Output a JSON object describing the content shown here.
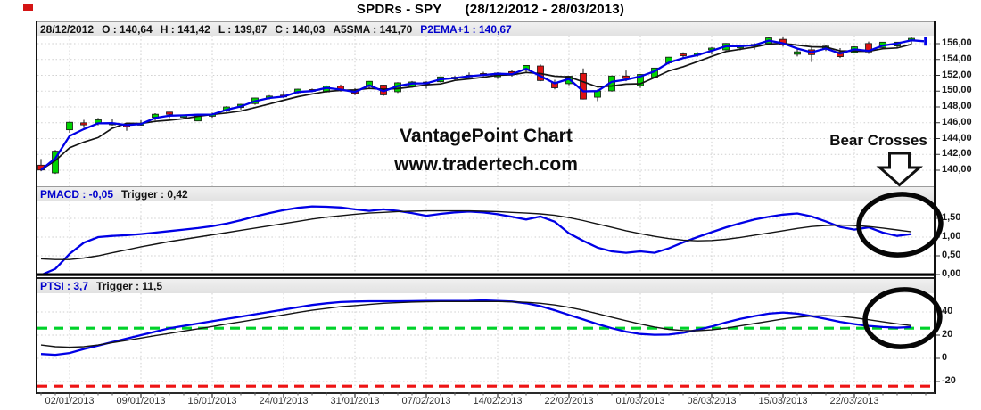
{
  "window_title": {
    "symbol": "SPDRs - SPY",
    "date_range": "(28/12/2012 - 28/03/2013)"
  },
  "price_panel": {
    "info_bar": {
      "date": "28/12/2012",
      "open": "O : 140,64",
      "high": "H : 141,42",
      "low": "L : 139,87",
      "close": "C : 140,03",
      "a5sma": "A5SMA : 141,70",
      "p2ema": "P2EMA+1 : 140,67"
    }
  },
  "pmacd_panel": {
    "name_value": "PMACD : -0,05",
    "trigger_value": "Trigger : 0,42"
  },
  "ptsi_panel": {
    "name_value": "PTSI : 3,7",
    "trigger_value": "Trigger : 11,5"
  },
  "annotations": {
    "watermark_line1": "VantagePoint Chart",
    "watermark_line2": "www.tradertech.com",
    "bear_crosses": "Bear Crosses"
  },
  "colors": {
    "candle_up": "#00d400",
    "candle_down": "#e01212",
    "predicted_line": "#0000e6",
    "average_line": "#141414",
    "blue_text": "#0000cc",
    "overbought_dash": "#00d22a",
    "oversold_dash": "#ee1414",
    "grid": "#cfcfcf"
  },
  "chart_data": [
    {
      "type": "candlestick",
      "name": "SPY daily",
      "title": "SPDRs - SPY (28/12/2012 - 28/03/2013)",
      "ylim": [
        138.0,
        157.0
      ],
      "y_ticks": [
        {
          "v": 156,
          "label": "156,00"
        },
        {
          "v": 154,
          "label": "154,00"
        },
        {
          "v": 152,
          "label": "152,00"
        },
        {
          "v": 150,
          "label": "150,00"
        },
        {
          "v": 148,
          "label": "148,00"
        },
        {
          "v": 146,
          "label": "146,00"
        },
        {
          "v": 144,
          "label": "144,00"
        },
        {
          "v": 142,
          "label": "142,00"
        },
        {
          "v": 140,
          "label": "140,00"
        }
      ],
      "x_tick_labels": [
        "02/01/2013",
        "09/01/2013",
        "16/01/2013",
        "24/01/2013",
        "31/01/2013",
        "07/02/2013",
        "14/02/2013",
        "22/02/2013",
        "01/03/2013",
        "08/03/2013",
        "15/03/2013",
        "22/03/2013"
      ],
      "x_tick_bar_index": [
        2,
        7,
        12,
        17,
        22,
        27,
        32,
        37,
        42,
        47,
        52,
        57
      ],
      "candles": [
        [
          140.64,
          141.42,
          139.87,
          140.03
        ],
        [
          139.66,
          142.56,
          139.54,
          142.41
        ],
        [
          145.11,
          146.15,
          144.73,
          146.06
        ],
        [
          145.99,
          146.37,
          145.35,
          145.73
        ],
        [
          145.97,
          146.61,
          145.67,
          146.37
        ],
        [
          145.85,
          146.44,
          145.65,
          145.97
        ],
        [
          145.71,
          145.91,
          144.98,
          145.55
        ],
        [
          145.87,
          146.32,
          145.64,
          145.92
        ],
        [
          146.69,
          147.21,
          146.28,
          147.08
        ],
        [
          147.35,
          147.35,
          146.61,
          147.07
        ],
        [
          146.7,
          147.0,
          146.51,
          146.97
        ],
        [
          146.23,
          147.14,
          146.21,
          147.07
        ],
        [
          146.92,
          147.28,
          146.62,
          147.05
        ],
        [
          147.54,
          148.11,
          147.34,
          148.0
        ],
        [
          147.93,
          148.4,
          147.67,
          148.33
        ],
        [
          148.42,
          149.15,
          148.27,
          149.13
        ],
        [
          149.12,
          149.5,
          148.95,
          149.37
        ],
        [
          149.49,
          150.0,
          149.11,
          149.41
        ],
        [
          149.8,
          150.31,
          149.67,
          150.25
        ],
        [
          150.2,
          150.33,
          149.86,
          150.07
        ],
        [
          149.9,
          150.72,
          149.81,
          150.66
        ],
        [
          150.62,
          150.83,
          149.94,
          150.07
        ],
        [
          150.01,
          150.36,
          149.48,
          149.7
        ],
        [
          150.67,
          151.28,
          150.41,
          151.24
        ],
        [
          150.76,
          150.79,
          149.4,
          149.53
        ],
        [
          149.92,
          151.12,
          149.76,
          151.05
        ],
        [
          150.64,
          151.28,
          150.42,
          151.16
        ],
        [
          151.14,
          151.25,
          150.31,
          151.0
        ],
        [
          151.19,
          151.85,
          151.09,
          151.8
        ],
        [
          151.66,
          151.93,
          151.4,
          151.77
        ],
        [
          151.88,
          152.37,
          151.7,
          152.02
        ],
        [
          152.23,
          152.45,
          151.84,
          152.15
        ],
        [
          151.82,
          152.4,
          151.53,
          152.29
        ],
        [
          152.47,
          152.67,
          151.85,
          152.11
        ],
        [
          152.64,
          153.28,
          152.43,
          153.25
        ],
        [
          153.18,
          153.37,
          151.25,
          151.34
        ],
        [
          151.06,
          151.43,
          150.23,
          150.42
        ],
        [
          150.94,
          151.94,
          150.74,
          151.89
        ],
        [
          152.24,
          152.87,
          148.95,
          149.0
        ],
        [
          149.23,
          150.23,
          148.73,
          150.02
        ],
        [
          150.03,
          151.97,
          149.94,
          151.91
        ],
        [
          151.91,
          152.6,
          151.26,
          151.61
        ],
        [
          150.7,
          152.17,
          150.41,
          152.11
        ],
        [
          151.77,
          152.93,
          151.61,
          152.92
        ],
        [
          153.58,
          154.33,
          153.36,
          154.29
        ],
        [
          154.7,
          154.9,
          154.14,
          154.5
        ],
        [
          154.59,
          154.93,
          154.33,
          154.78
        ],
        [
          155.42,
          155.56,
          154.64,
          155.44
        ],
        [
          155.21,
          156.07,
          155.13,
          156.03
        ],
        [
          155.59,
          155.88,
          155.15,
          155.68
        ],
        [
          155.71,
          156.06,
          155.26,
          155.91
        ],
        [
          156.02,
          156.82,
          155.91,
          156.73
        ],
        [
          156.55,
          156.8,
          155.63,
          155.83
        ],
        [
          154.66,
          155.45,
          154.38,
          154.97
        ],
        [
          155.22,
          155.6,
          153.68,
          154.61
        ],
        [
          155.34,
          155.78,
          155.07,
          155.69
        ],
        [
          154.93,
          155.44,
          154.19,
          154.36
        ],
        [
          154.86,
          155.67,
          154.82,
          155.6
        ],
        [
          156.02,
          156.27,
          154.71,
          154.95
        ],
        [
          155.5,
          156.23,
          155.31,
          156.19
        ],
        [
          155.71,
          156.21,
          155.41,
          156.19
        ],
        [
          156.33,
          156.85,
          155.93,
          156.67
        ]
      ],
      "overlays": [
        {
          "name": "A5SMA",
          "kind": "sma",
          "period": 5,
          "color": "#141414"
        },
        {
          "name": "P2EMA+1",
          "kind": "ema",
          "alpha": 0.62,
          "color": "#0000e6"
        }
      ],
      "predicted_bar": {
        "bar_index": 62,
        "from": 156.8,
        "to": 155.75
      }
    },
    {
      "type": "line",
      "name": "PMACD",
      "current": "-0,05",
      "trigger_current": "0,42",
      "ylim": [
        -0.4,
        1.98
      ],
      "y_ticks": [
        {
          "v": 1.5,
          "label": "1,50"
        },
        {
          "v": 1.0,
          "label": "1,00"
        },
        {
          "v": 0.5,
          "label": "0,50"
        },
        {
          "v": 0.0,
          "label": "0,00"
        }
      ],
      "zero_line": 0,
      "series": [
        {
          "name": "PMACD",
          "color": "#0000e6",
          "values": [
            -0.05,
            0.15,
            0.55,
            0.85,
            1.0,
            1.03,
            1.05,
            1.08,
            1.12,
            1.16,
            1.2,
            1.24,
            1.29,
            1.36,
            1.45,
            1.55,
            1.64,
            1.72,
            1.78,
            1.82,
            1.81,
            1.79,
            1.74,
            1.7,
            1.74,
            1.7,
            1.64,
            1.57,
            1.62,
            1.66,
            1.68,
            1.66,
            1.61,
            1.54,
            1.47,
            1.55,
            1.41,
            1.1,
            0.9,
            0.72,
            0.62,
            0.58,
            0.62,
            0.58,
            0.7,
            0.86,
            1.0,
            1.13,
            1.26,
            1.37,
            1.47,
            1.54,
            1.6,
            1.63,
            1.55,
            1.42,
            1.27,
            1.2,
            1.26,
            1.12,
            1.03,
            1.08
          ]
        },
        {
          "name": "Trigger",
          "color": "#141414",
          "values": [
            0.42,
            0.4,
            0.4,
            0.44,
            0.5,
            0.58,
            0.66,
            0.74,
            0.81,
            0.88,
            0.94,
            1.0,
            1.06,
            1.12,
            1.18,
            1.24,
            1.3,
            1.36,
            1.42,
            1.48,
            1.53,
            1.57,
            1.61,
            1.64,
            1.66,
            1.68,
            1.69,
            1.7,
            1.7,
            1.7,
            1.7,
            1.69,
            1.68,
            1.66,
            1.64,
            1.62,
            1.58,
            1.52,
            1.44,
            1.35,
            1.26,
            1.17,
            1.09,
            1.02,
            0.96,
            0.92,
            0.9,
            0.91,
            0.94,
            0.99,
            1.05,
            1.11,
            1.17,
            1.23,
            1.28,
            1.31,
            1.32,
            1.31,
            1.28,
            1.24,
            1.19,
            1.14
          ]
        }
      ]
    },
    {
      "type": "line",
      "name": "PTSI",
      "current": "3,7",
      "trigger_current": "11,5",
      "ylim": [
        -29,
        56
      ],
      "y_ticks": [
        {
          "v": 40,
          "label": "40"
        },
        {
          "v": 20,
          "label": "20"
        },
        {
          "v": 0,
          "label": "0"
        },
        {
          "v": -20,
          "label": "-20"
        }
      ],
      "hlines": [
        {
          "v": 26,
          "color": "#00d22a",
          "style": "dashed",
          "name": "overbought"
        },
        {
          "v": -24,
          "color": "#ee1414",
          "style": "dashed",
          "name": "oversold"
        }
      ],
      "series": [
        {
          "name": "PTSI",
          "color": "#0000e6",
          "values": [
            3.7,
            3.0,
            4.5,
            8,
            11,
            14,
            17,
            20,
            23,
            26,
            28,
            30,
            32,
            34,
            36,
            38,
            40,
            42,
            44,
            46,
            47.5,
            48.5,
            49,
            49.2,
            49.2,
            49.2,
            49.3,
            49.5,
            49.5,
            49.5,
            49.6,
            50,
            49.5,
            49,
            47.5,
            45,
            41.5,
            37.5,
            33.5,
            29.5,
            26,
            23,
            21,
            20.3,
            20.5,
            22,
            24.5,
            27.5,
            31,
            34,
            36.5,
            38.5,
            39.5,
            38.5,
            36.5,
            34,
            31.5,
            29.5,
            28,
            27,
            26.5,
            27
          ]
        },
        {
          "name": "Trigger",
          "color": "#141414",
          "values": [
            11.5,
            10,
            9.5,
            10,
            11.5,
            13.5,
            15.5,
            17.5,
            19.5,
            21.5,
            23.5,
            25.5,
            27.5,
            29.5,
            31.5,
            33.5,
            35.5,
            37.5,
            39.5,
            41.5,
            43,
            44.5,
            45.5,
            46.5,
            47.5,
            48,
            48.5,
            48.8,
            49,
            49,
            49,
            49,
            49,
            48.8,
            48.3,
            47.5,
            46,
            44,
            41.5,
            38.5,
            35.5,
            32.5,
            29.5,
            27,
            25,
            24,
            23.8,
            24.5,
            26,
            28,
            30,
            32,
            34,
            35.5,
            36.5,
            36.8,
            36.3,
            35,
            33.3,
            31.5,
            29.8,
            28.2
          ]
        }
      ]
    }
  ]
}
